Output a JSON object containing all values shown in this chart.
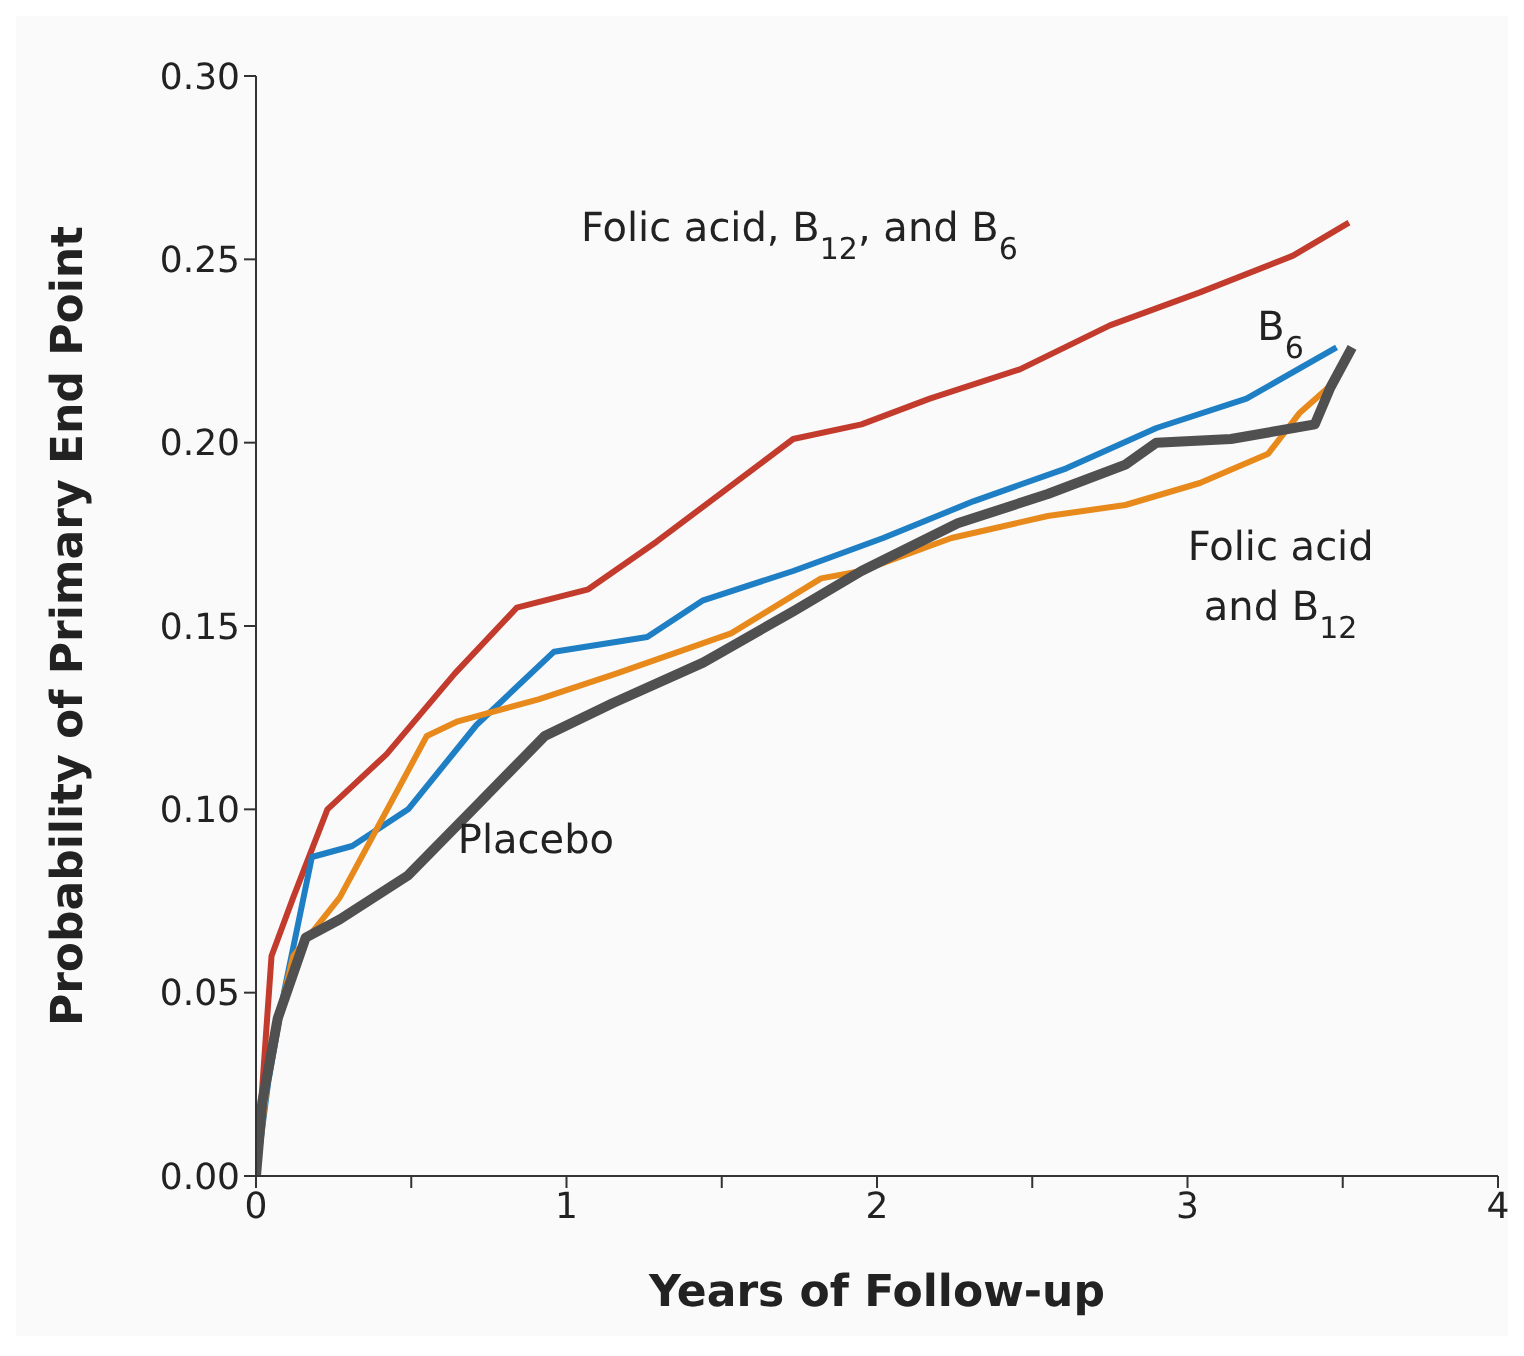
{
  "chart_data": {
    "type": "line",
    "xlabel": "Years of Follow-up",
    "ylabel": "Probability of Primary End Point",
    "xlim": [
      0,
      4
    ],
    "xticks": [
      0,
      {
        "value": 0.5,
        "label": null
      },
      1,
      {
        "value": 1.5,
        "label": null
      },
      2,
      {
        "value": 2.5,
        "label": null
      },
      3,
      {
        "value": 3.5,
        "label": null
      },
      4
    ],
    "ylim": [
      0,
      0.3
    ],
    "yticks": [
      {
        "value": 0,
        "label": "0.00"
      },
      {
        "value": 0.05,
        "label": "0.05"
      },
      {
        "value": 0.1,
        "label": "0.10"
      },
      {
        "value": 0.15,
        "label": "0.15"
      },
      {
        "value": 0.2,
        "label": "0.20"
      },
      {
        "value": 0.25,
        "label": "0.25"
      },
      {
        "value": 0.3,
        "label": "0.30"
      }
    ],
    "grid": false,
    "line_style": "solid",
    "marker": "none",
    "series": [
      {
        "name": "Folic acid, B$_{12}$, and B$_{6}$",
        "color": "#c33b2d",
        "x": [
          0,
          0.05,
          0.12,
          0.23,
          0.42,
          0.64,
          0.84,
          1.07,
          1.29,
          1.51,
          1.73,
          1.95,
          2.17,
          2.46,
          2.75,
          3.04,
          3.34,
          3.52
        ],
        "values": [
          0,
          0.06,
          0.076,
          0.1,
          0.115,
          0.137,
          0.155,
          0.16,
          0.173,
          0.187,
          0.201,
          0.205,
          0.212,
          0.22,
          0.232,
          0.241,
          0.251,
          0.26
        ]
      },
      {
        "name": "B$_{6}$",
        "color": "#1f7fc4",
        "x": [
          0,
          0.04,
          0.09,
          0.18,
          0.31,
          0.49,
          0.71,
          0.96,
          1.26,
          1.44,
          1.73,
          2.02,
          2.31,
          2.61,
          2.9,
          3.19,
          3.48
        ],
        "values": [
          0,
          0.026,
          0.05,
          0.087,
          0.09,
          0.1,
          0.123,
          0.143,
          0.147,
          0.157,
          0.165,
          0.174,
          0.184,
          0.193,
          0.204,
          0.212,
          0.226
        ]
      },
      {
        "name": "Folic acid and B$_{12}$",
        "color": "#e8891c",
        "x": [
          0,
          0.05,
          0.12,
          0.27,
          0.55,
          0.65,
          0.91,
          1.16,
          1.53,
          1.82,
          1.95,
          2.24,
          2.55,
          2.8,
          3.04,
          3.26,
          3.36,
          3.48
        ],
        "values": [
          0,
          0.035,
          0.06,
          0.076,
          0.12,
          0.124,
          0.13,
          0.137,
          0.148,
          0.163,
          0.165,
          0.174,
          0.18,
          0.183,
          0.189,
          0.197,
          0.208,
          0.217
        ]
      },
      {
        "name": "Placebo",
        "color": "#505050",
        "x": [
          0,
          0.02,
          0.07,
          0.16,
          0.27,
          0.49,
          0.71,
          0.93,
          1.15,
          1.44,
          1.73,
          1.95,
          2.26,
          2.55,
          2.8,
          2.9,
          3.14,
          3.41,
          3.46,
          3.53
        ],
        "values": [
          0,
          0.02,
          0.043,
          0.065,
          0.07,
          0.082,
          0.101,
          0.12,
          0.129,
          0.14,
          0.154,
          0.165,
          0.178,
          0.186,
          0.194,
          0.2,
          0.201,
          0.205,
          0.215,
          0.226
        ]
      }
    ]
  }
}
